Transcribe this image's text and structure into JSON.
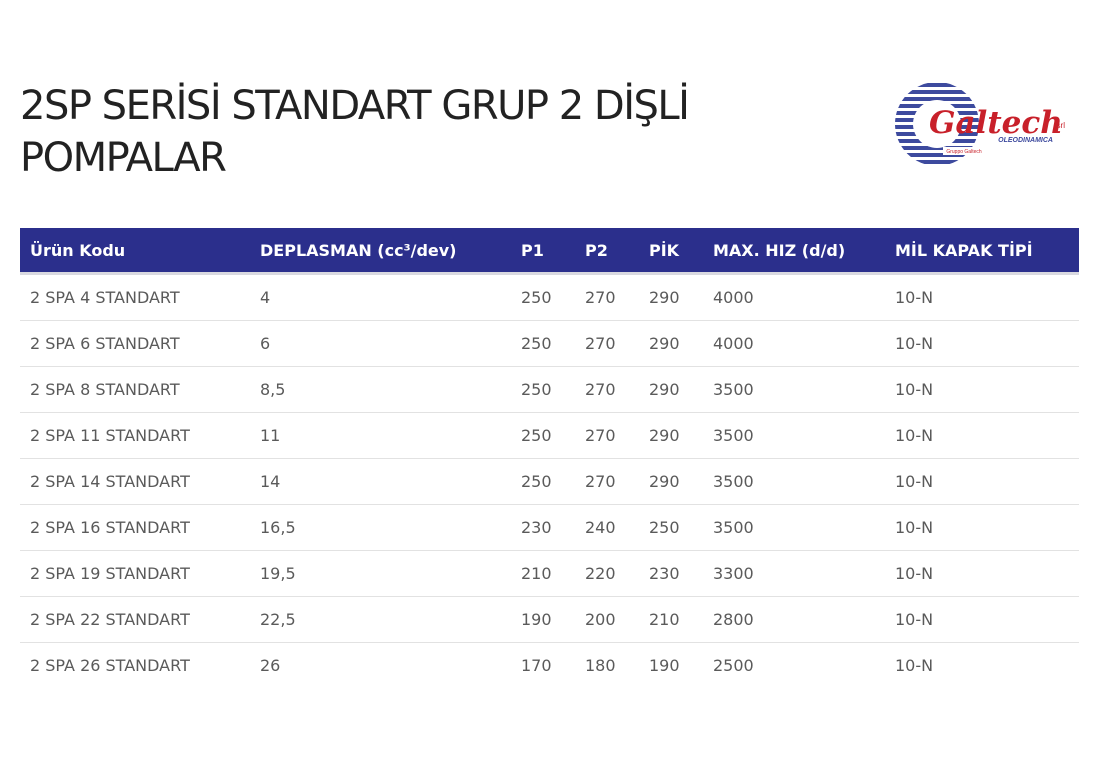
{
  "page": {
    "title_line1": "2SP SERİSİ STANDART GRUP 2 DİŞLİ",
    "title_line2": "POMPALAR"
  },
  "logo": {
    "brand": "Galtech",
    "suffix": "srl",
    "tagline": "OLEODINAMICA",
    "badge": "Gruppo Galtech",
    "colors": {
      "stripes": "#3d4a9e",
      "text": "#c8202a"
    }
  },
  "table": {
    "header_color": "#2b2f8c",
    "headers": [
      "Ürün Kodu",
      "DEPLASMAN (cc³/dev)",
      "P1",
      "P2",
      "PİK",
      "MAX. HIZ (d/d)",
      "MİL KAPAK TİPİ"
    ],
    "rows": [
      [
        "2 SPA 4 STANDART",
        "4",
        "250",
        "270",
        "290",
        "4000",
        "10-N"
      ],
      [
        "2 SPA 6 STANDART",
        "6",
        "250",
        "270",
        "290",
        "4000",
        "10-N"
      ],
      [
        "2 SPA 8 STANDART",
        "8,5",
        "250",
        "270",
        "290",
        "3500",
        "10-N"
      ],
      [
        "2 SPA 11 STANDART",
        "11",
        "250",
        "270",
        "290",
        "3500",
        "10-N"
      ],
      [
        "2 SPA 14 STANDART",
        "14",
        "250",
        "270",
        "290",
        "3500",
        "10-N"
      ],
      [
        "2 SPA 16 STANDART",
        "16,5",
        "230",
        "240",
        "250",
        "3500",
        "10-N"
      ],
      [
        "2 SPA 19 STANDART",
        "19,5",
        "210",
        "220",
        "230",
        "3300",
        "10-N"
      ],
      [
        "2 SPA 22 STANDART",
        "22,5",
        "190",
        "200",
        "210",
        "2800",
        "10-N"
      ],
      [
        "2 SPA 26 STANDART",
        "26",
        "170",
        "180",
        "190",
        "2500",
        "10-N"
      ]
    ]
  }
}
